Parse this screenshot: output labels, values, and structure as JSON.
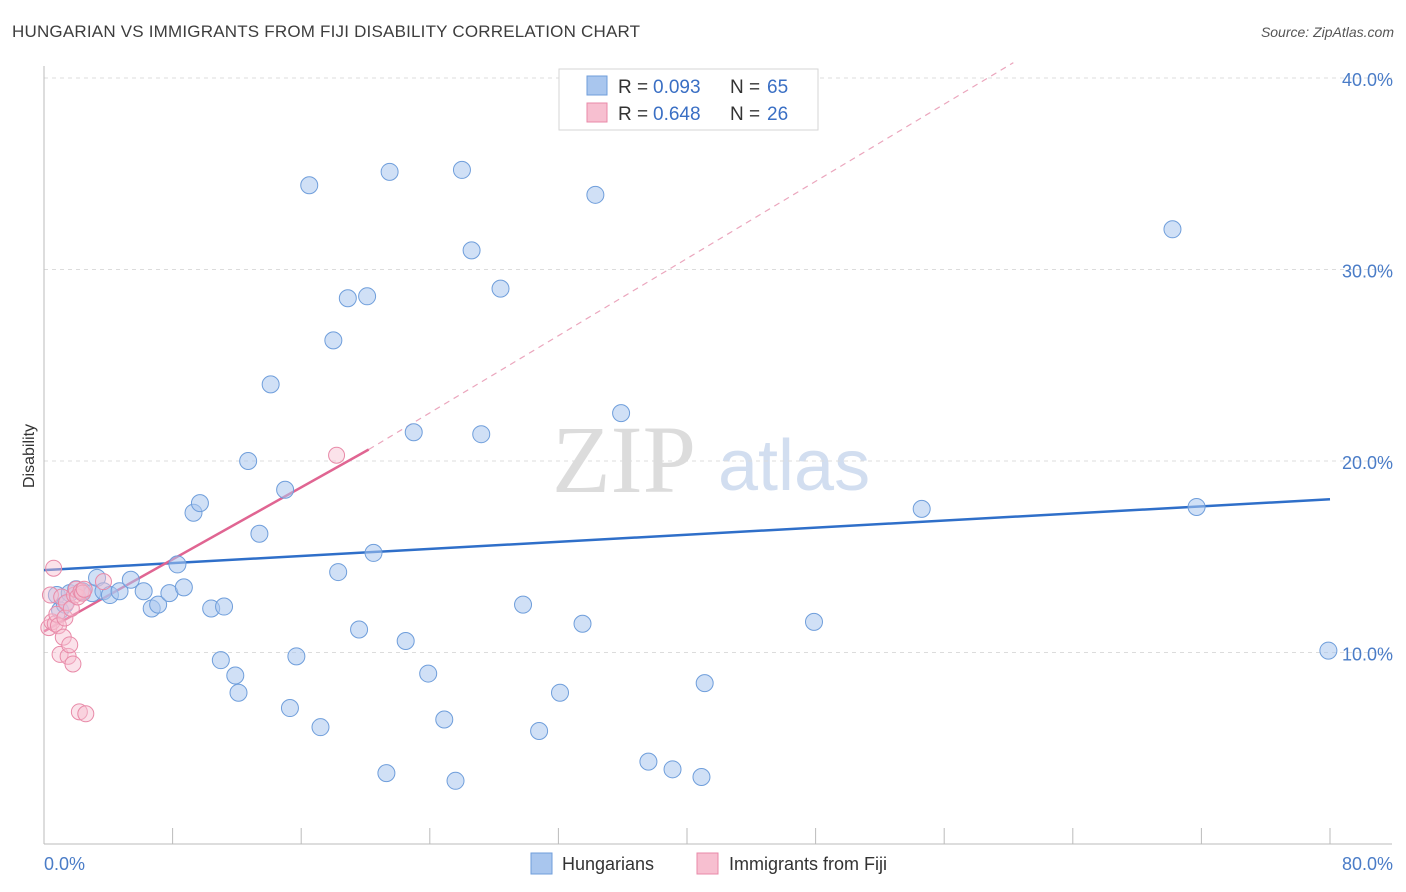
{
  "header": {
    "title": "HUNGARIAN VS IMMIGRANTS FROM FIJI DISABILITY CORRELATION CHART",
    "source": "Source: ZipAtlas.com"
  },
  "watermark": {
    "zip": "ZIP",
    "atlas": "atlas"
  },
  "legend": {
    "r_label": "R = ",
    "n_label": "N = ",
    "rows": [
      {
        "r": "0.093",
        "n": "65",
        "color": "#a9c6ee"
      },
      {
        "r": "0.648",
        "n": "26",
        "color": "#f5b8cb"
      }
    ]
  },
  "colors": {
    "hungarians_fill": "#a9c6ee",
    "hungarians_stroke": "#6f9edb",
    "hungarians_line": "#2f6fc9",
    "fiji_fill": "#f7bfd0",
    "fiji_stroke": "#e88aa8",
    "fiji_line": "#e06592",
    "grid": "#dcdcdc",
    "tick": "#4a7cc7"
  },
  "chart_data": {
    "type": "scatter",
    "title": "HUNGARIAN VS IMMIGRANTS FROM FIJI DISABILITY CORRELATION CHART",
    "xlabel": "",
    "ylabel": "Disability",
    "xlim": [
      0,
      80
    ],
    "ylim": [
      0,
      40
    ],
    "x_tick_labels": [
      {
        "value": 0,
        "label": "0.0%"
      },
      {
        "value": 80,
        "label": "80.0%"
      }
    ],
    "y_tick_labels": [
      {
        "value": 10,
        "label": "10.0%"
      },
      {
        "value": 20,
        "label": "20.0%"
      },
      {
        "value": 30,
        "label": "30.0%"
      },
      {
        "value": 40,
        "label": "40.0%"
      }
    ],
    "series": [
      {
        "name": "Hungarians",
        "r": 0.093,
        "n": 65,
        "trend": {
          "x": [
            0,
            80
          ],
          "y": [
            14.3,
            18.0
          ]
        },
        "points": [
          [
            0.8,
            13.0
          ],
          [
            1.0,
            12.2
          ],
          [
            1.3,
            12.5
          ],
          [
            1.6,
            13.1
          ],
          [
            2.0,
            13.3
          ],
          [
            2.4,
            13.2
          ],
          [
            3.0,
            13.1
          ],
          [
            3.3,
            13.9
          ],
          [
            3.7,
            13.2
          ],
          [
            4.1,
            13.0
          ],
          [
            4.7,
            13.2
          ],
          [
            5.4,
            13.8
          ],
          [
            6.2,
            13.2
          ],
          [
            6.7,
            12.3
          ],
          [
            7.1,
            12.5
          ],
          [
            7.8,
            13.1
          ],
          [
            8.3,
            14.6
          ],
          [
            8.7,
            13.4
          ],
          [
            9.3,
            17.3
          ],
          [
            9.7,
            17.8
          ],
          [
            10.4,
            12.3
          ],
          [
            11.2,
            12.4
          ],
          [
            11.0,
            9.6
          ],
          [
            11.9,
            8.8
          ],
          [
            12.1,
            7.9
          ],
          [
            12.7,
            20.0
          ],
          [
            13.4,
            16.2
          ],
          [
            14.1,
            24.0
          ],
          [
            15.0,
            18.5
          ],
          [
            15.3,
            7.1
          ],
          [
            15.7,
            9.8
          ],
          [
            16.5,
            34.4
          ],
          [
            17.2,
            6.1
          ],
          [
            18.0,
            26.3
          ],
          [
            18.3,
            14.2
          ],
          [
            18.9,
            28.5
          ],
          [
            19.6,
            11.2
          ],
          [
            20.1,
            28.6
          ],
          [
            20.5,
            15.2
          ],
          [
            21.3,
            3.7
          ],
          [
            21.5,
            35.1
          ],
          [
            22.5,
            10.6
          ],
          [
            23.0,
            21.5
          ],
          [
            23.9,
            8.9
          ],
          [
            24.9,
            6.5
          ],
          [
            25.6,
            3.3
          ],
          [
            26.0,
            35.2
          ],
          [
            26.6,
            31.0
          ],
          [
            27.2,
            21.4
          ],
          [
            28.4,
            29.0
          ],
          [
            29.8,
            12.5
          ],
          [
            30.8,
            5.9
          ],
          [
            32.1,
            7.9
          ],
          [
            33.5,
            11.5
          ],
          [
            34.3,
            33.9
          ],
          [
            35.9,
            22.5
          ],
          [
            37.6,
            4.3
          ],
          [
            39.1,
            3.9
          ],
          [
            40.9,
            3.5
          ],
          [
            41.1,
            8.4
          ],
          [
            47.9,
            11.6
          ],
          [
            54.6,
            17.5
          ],
          [
            70.2,
            32.1
          ],
          [
            71.7,
            17.6
          ],
          [
            79.9,
            10.1
          ]
        ]
      },
      {
        "name": "Immigrants from Fiji",
        "r": 0.648,
        "n": 26,
        "trend": {
          "x": [
            0,
            20.2
          ],
          "y": [
            11.1,
            20.6
          ],
          "extended": {
            "x": [
              20.2,
              60.3
            ],
            "y": [
              20.6,
              40.8
            ]
          }
        },
        "points": [
          [
            0.3,
            11.3
          ],
          [
            0.4,
            13.0
          ],
          [
            0.5,
            11.6
          ],
          [
            0.6,
            14.4
          ],
          [
            0.7,
            11.5
          ],
          [
            0.8,
            12.0
          ],
          [
            0.9,
            11.4
          ],
          [
            1.0,
            9.9
          ],
          [
            1.1,
            12.9
          ],
          [
            1.2,
            10.8
          ],
          [
            1.3,
            11.8
          ],
          [
            1.4,
            12.6
          ],
          [
            1.5,
            9.8
          ],
          [
            1.6,
            10.4
          ],
          [
            1.7,
            12.3
          ],
          [
            1.8,
            9.4
          ],
          [
            1.9,
            13.0
          ],
          [
            2.0,
            13.3
          ],
          [
            2.1,
            12.9
          ],
          [
            2.2,
            6.9
          ],
          [
            2.3,
            13.2
          ],
          [
            2.4,
            13.1
          ],
          [
            2.5,
            13.3
          ],
          [
            2.6,
            6.8
          ],
          [
            3.7,
            13.7
          ],
          [
            18.2,
            20.3
          ]
        ]
      }
    ]
  },
  "bottom_legend": [
    {
      "label": "Hungarians"
    },
    {
      "label": "Immigrants from Fiji"
    }
  ]
}
